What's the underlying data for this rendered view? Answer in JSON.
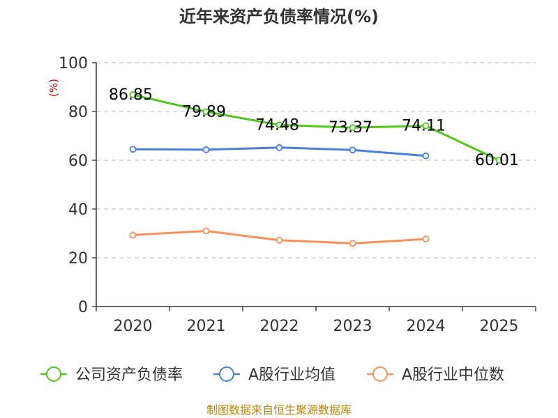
{
  "chart_data": {
    "type": "line",
    "title": "近年来资产负债率情况(%)",
    "ylabel": "(%)",
    "xlabel": "",
    "ylim": [
      0,
      100
    ],
    "yticks": [
      0,
      20,
      40,
      60,
      80,
      100
    ],
    "grid": true,
    "legend_position": "bottom",
    "categories": [
      "2020",
      "2021",
      "2022",
      "2023",
      "2024",
      "2025"
    ],
    "series": [
      {
        "name": "公司资产负债率",
        "color": "#52c41a",
        "values": [
          86.85,
          79.89,
          74.48,
          73.37,
          74.11,
          60.01
        ],
        "labels": [
          "86.85",
          "79.89",
          "74.48",
          "73.37",
          "74.11",
          "60.01"
        ]
      },
      {
        "name": "A股行业均值",
        "color": "#4a7fd6",
        "values": [
          64.5,
          64.3,
          65.2,
          64.2,
          61.8,
          null
        ]
      },
      {
        "name": "A股行业中位数",
        "color": "#f5915a",
        "values": [
          29.3,
          31.0,
          27.2,
          25.9,
          27.7,
          null
        ]
      }
    ]
  },
  "source": "制图数据来自恒生聚源数据库"
}
